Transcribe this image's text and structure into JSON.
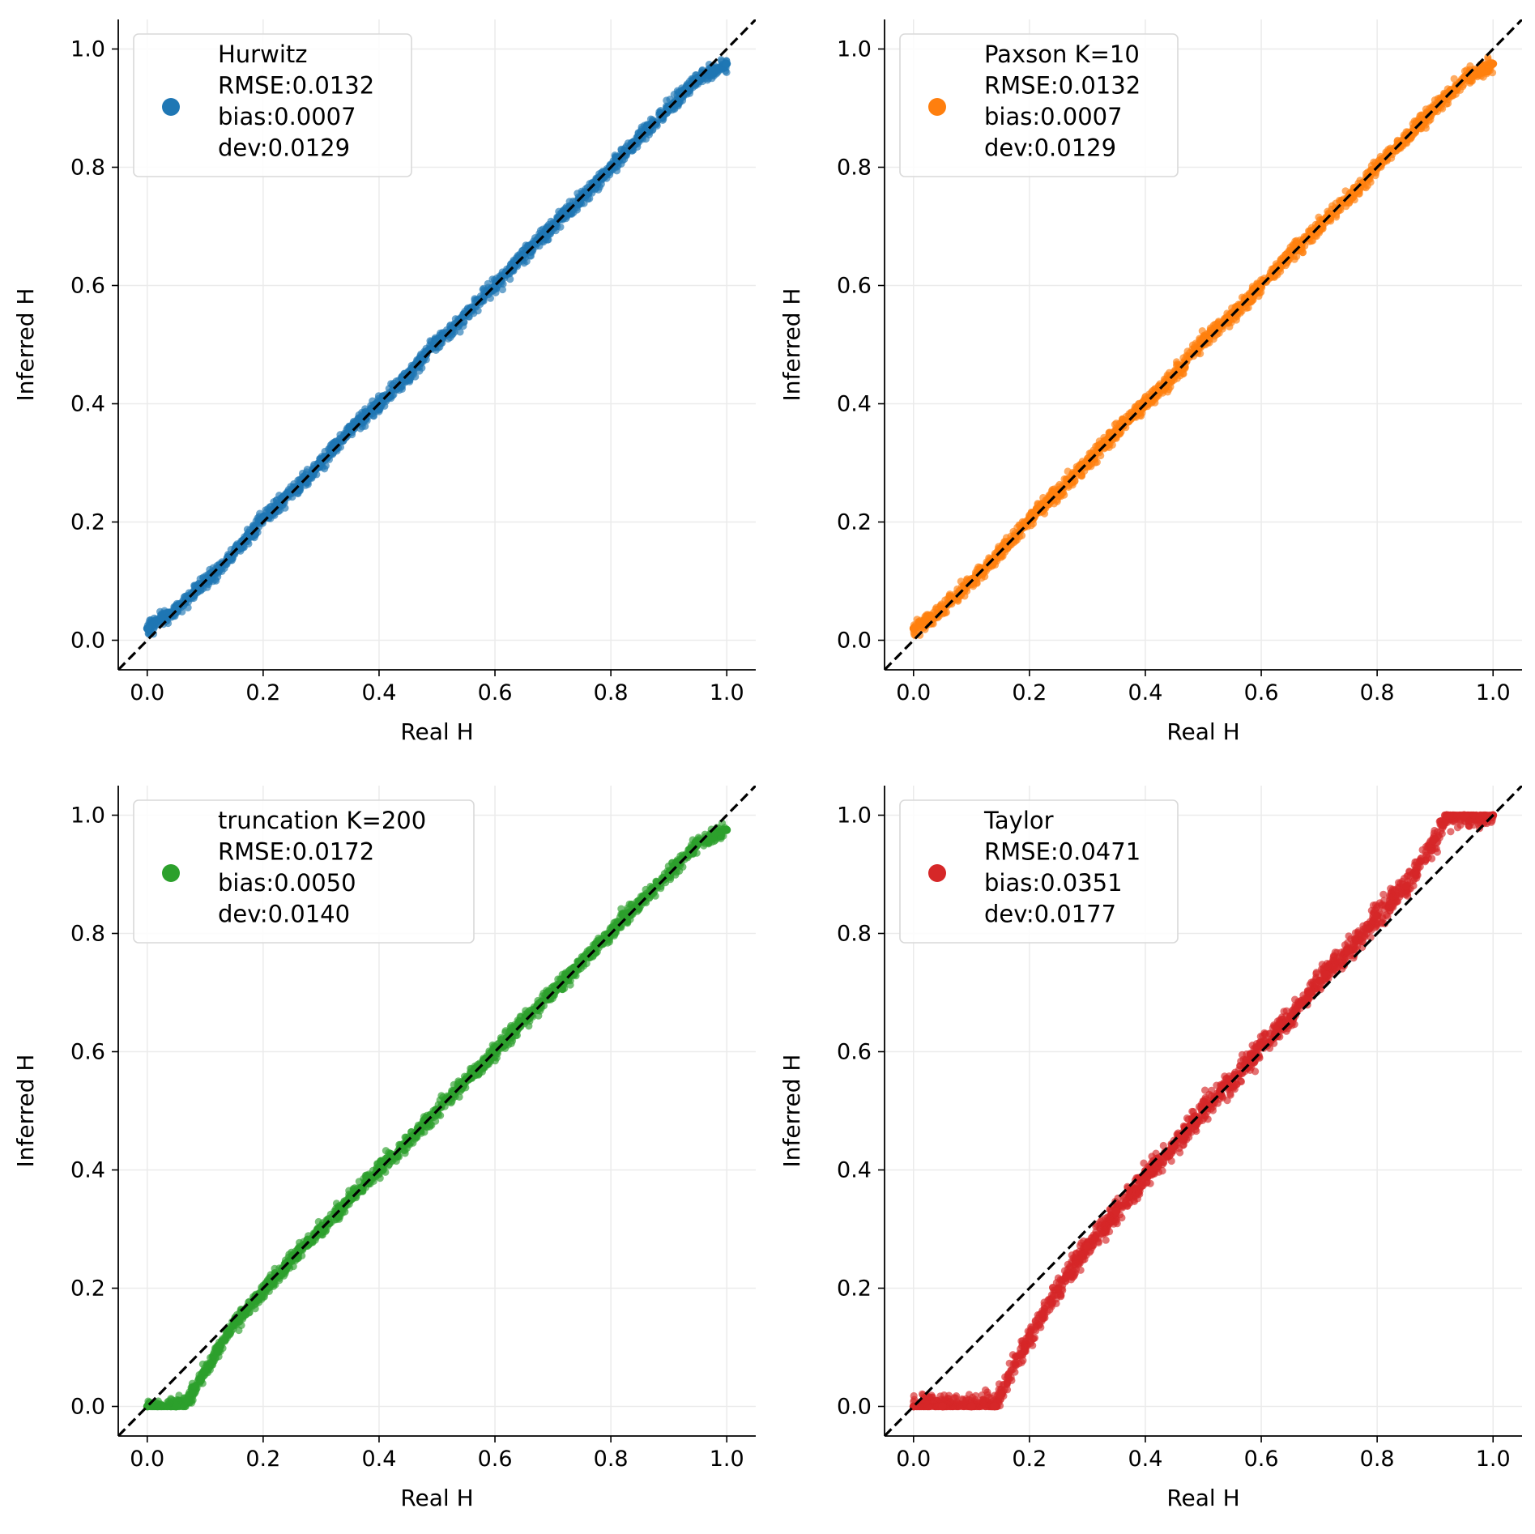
{
  "chart_data": [
    {
      "type": "scatter",
      "method": "Hurwitz",
      "color": "#1f77b4",
      "xlabel": "Real H",
      "ylabel": "Inferred H",
      "xlim": [
        -0.05,
        1.05
      ],
      "ylim": [
        -0.05,
        1.05
      ],
      "xticks": [
        "0.0",
        "0.2",
        "0.4",
        "0.6",
        "0.8",
        "1.0"
      ],
      "yticks": [
        "0.0",
        "0.2",
        "0.4",
        "0.6",
        "0.8",
        "1.0"
      ],
      "grid": true,
      "legend_position": "top-left",
      "legend_lines": [
        "Hurwitz",
        "RMSE:0.0132",
        "bias:0.0007",
        "dev:0.0129"
      ],
      "reference_line": {
        "style": "dashed",
        "color": "#000000",
        "from": [
          -0.05,
          -0.05
        ],
        "to": [
          1.05,
          1.05
        ]
      },
      "points": [
        [
          0.0,
          0.02
        ],
        [
          0.05,
          0.052
        ],
        [
          0.1,
          0.1
        ],
        [
          0.15,
          0.148
        ],
        [
          0.2,
          0.205
        ],
        [
          0.25,
          0.252
        ],
        [
          0.3,
          0.3
        ],
        [
          0.35,
          0.355
        ],
        [
          0.4,
          0.4
        ],
        [
          0.45,
          0.448
        ],
        [
          0.5,
          0.505
        ],
        [
          0.55,
          0.55
        ],
        [
          0.6,
          0.6
        ],
        [
          0.65,
          0.652
        ],
        [
          0.7,
          0.7
        ],
        [
          0.75,
          0.748
        ],
        [
          0.8,
          0.8
        ],
        [
          0.85,
          0.852
        ],
        [
          0.9,
          0.9
        ],
        [
          0.95,
          0.95
        ],
        [
          1.0,
          0.975
        ]
      ]
    },
    {
      "type": "scatter",
      "method": "Paxson K=10",
      "color": "#ff7f0e",
      "xlabel": "Real H",
      "ylabel": "Inferred H",
      "xlim": [
        -0.05,
        1.05
      ],
      "ylim": [
        -0.05,
        1.05
      ],
      "xticks": [
        "0.0",
        "0.2",
        "0.4",
        "0.6",
        "0.8",
        "1.0"
      ],
      "yticks": [
        "0.0",
        "0.2",
        "0.4",
        "0.6",
        "0.8",
        "1.0"
      ],
      "grid": true,
      "legend_position": "top-left",
      "legend_lines": [
        "Paxson K=10",
        "RMSE:0.0132",
        "bias:0.0007",
        "dev:0.0129"
      ],
      "reference_line": {
        "style": "dashed",
        "color": "#000000",
        "from": [
          -0.05,
          -0.05
        ],
        "to": [
          1.05,
          1.05
        ]
      },
      "points": [
        [
          0.0,
          0.02
        ],
        [
          0.05,
          0.052
        ],
        [
          0.1,
          0.1
        ],
        [
          0.15,
          0.148
        ],
        [
          0.2,
          0.205
        ],
        [
          0.25,
          0.252
        ],
        [
          0.3,
          0.3
        ],
        [
          0.35,
          0.355
        ],
        [
          0.4,
          0.4
        ],
        [
          0.45,
          0.448
        ],
        [
          0.5,
          0.505
        ],
        [
          0.55,
          0.55
        ],
        [
          0.6,
          0.6
        ],
        [
          0.65,
          0.652
        ],
        [
          0.7,
          0.7
        ],
        [
          0.75,
          0.748
        ],
        [
          0.8,
          0.8
        ],
        [
          0.85,
          0.852
        ],
        [
          0.9,
          0.9
        ],
        [
          0.95,
          0.95
        ],
        [
          1.0,
          0.975
        ]
      ]
    },
    {
      "type": "scatter",
      "method": "truncation K=200",
      "color": "#2ca02c",
      "xlabel": "Real H",
      "ylabel": "Inferred H",
      "xlim": [
        -0.05,
        1.05
      ],
      "ylim": [
        -0.05,
        1.05
      ],
      "xticks": [
        "0.0",
        "0.2",
        "0.4",
        "0.6",
        "0.8",
        "1.0"
      ],
      "yticks": [
        "0.0",
        "0.2",
        "0.4",
        "0.6",
        "0.8",
        "1.0"
      ],
      "grid": true,
      "legend_position": "top-left",
      "legend_lines": [
        "truncation K=200",
        "RMSE:0.0172",
        "bias:0.0050",
        "dev:0.0140"
      ],
      "reference_line": {
        "style": "dashed",
        "color": "#000000",
        "from": [
          -0.05,
          -0.05
        ],
        "to": [
          1.05,
          1.05
        ]
      },
      "points": [
        [
          0.0,
          0.0
        ],
        [
          0.05,
          0.0
        ],
        [
          0.07,
          0.01
        ],
        [
          0.1,
          0.06
        ],
        [
          0.15,
          0.14
        ],
        [
          0.2,
          0.195
        ],
        [
          0.25,
          0.248
        ],
        [
          0.3,
          0.3
        ],
        [
          0.35,
          0.35
        ],
        [
          0.4,
          0.402
        ],
        [
          0.45,
          0.45
        ],
        [
          0.5,
          0.5
        ],
        [
          0.55,
          0.552
        ],
        [
          0.6,
          0.6
        ],
        [
          0.65,
          0.652
        ],
        [
          0.7,
          0.702
        ],
        [
          0.75,
          0.752
        ],
        [
          0.8,
          0.802
        ],
        [
          0.85,
          0.852
        ],
        [
          0.9,
          0.902
        ],
        [
          0.95,
          0.952
        ],
        [
          1.0,
          0.975
        ]
      ]
    },
    {
      "type": "scatter",
      "method": "Taylor",
      "color": "#d62728",
      "xlabel": "Real H",
      "ylabel": "Inferred H",
      "xlim": [
        -0.05,
        1.05
      ],
      "ylim": [
        -0.05,
        1.05
      ],
      "xticks": [
        "0.0",
        "0.2",
        "0.4",
        "0.6",
        "0.8",
        "1.0"
      ],
      "yticks": [
        "0.0",
        "0.2",
        "0.4",
        "0.6",
        "0.8",
        "1.0"
      ],
      "grid": true,
      "legend_position": "top-left",
      "legend_lines": [
        "Taylor",
        "RMSE:0.0471",
        "bias:0.0351",
        "dev:0.0177"
      ],
      "reference_line": {
        "style": "dashed",
        "color": "#000000",
        "from": [
          -0.05,
          -0.05
        ],
        "to": [
          1.05,
          1.05
        ]
      },
      "points": [
        [
          0.0,
          0.0
        ],
        [
          0.05,
          0.0
        ],
        [
          0.1,
          0.0
        ],
        [
          0.14,
          0.0
        ],
        [
          0.15,
          0.02
        ],
        [
          0.2,
          0.12
        ],
        [
          0.25,
          0.2
        ],
        [
          0.3,
          0.27
        ],
        [
          0.35,
          0.33
        ],
        [
          0.4,
          0.39
        ],
        [
          0.45,
          0.44
        ],
        [
          0.5,
          0.5
        ],
        [
          0.55,
          0.55
        ],
        [
          0.6,
          0.61
        ],
        [
          0.65,
          0.66
        ],
        [
          0.7,
          0.72
        ],
        [
          0.75,
          0.77
        ],
        [
          0.8,
          0.83
        ],
        [
          0.85,
          0.88
        ],
        [
          0.9,
          0.96
        ],
        [
          0.92,
          1.0
        ],
        [
          0.95,
          1.0
        ],
        [
          1.0,
          1.0
        ]
      ]
    }
  ]
}
